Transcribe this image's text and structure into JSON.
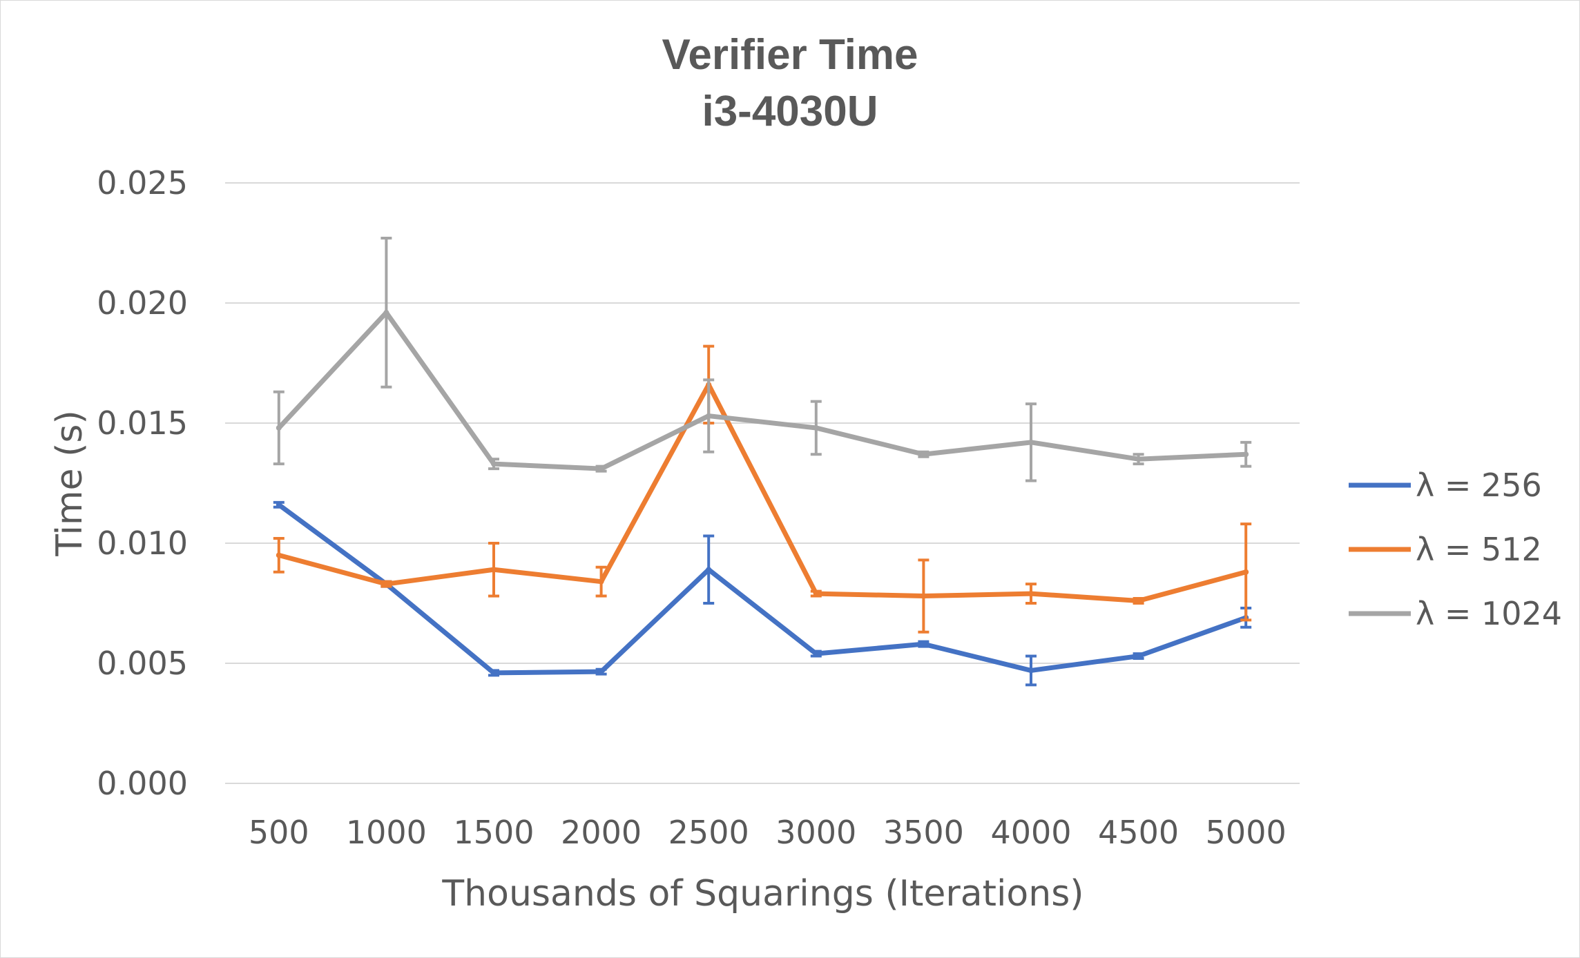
{
  "chart_data": {
    "type": "line",
    "title": "Verifier Time",
    "subtitle": "i3-4030U",
    "xlabel": "Thousands of Squarings (Iterations)",
    "ylabel": "Time (s)",
    "categories": [
      "500",
      "1000",
      "1500",
      "2000",
      "2500",
      "3000",
      "3500",
      "4000",
      "4500",
      "5000"
    ],
    "ylim": [
      0,
      0.025
    ],
    "yticks": [
      "0.000",
      "0.005",
      "0.010",
      "0.015",
      "0.020",
      "0.025"
    ],
    "grid": true,
    "legend_position": "right",
    "series": [
      {
        "name": "λ = 256",
        "color": "#4472c4",
        "values": [
          0.0116,
          0.0083,
          0.0046,
          0.00465,
          0.0089,
          0.0054,
          0.0058,
          0.0047,
          0.0053,
          0.0069
        ],
        "errors": [
          0.0001,
          0.0001,
          0.0001,
          0.0001,
          0.0014,
          0.0001,
          0.0001,
          0.0006,
          0.0001,
          0.0004
        ]
      },
      {
        "name": "λ = 512",
        "color": "#ed7d31",
        "values": [
          0.0095,
          0.0083,
          0.0089,
          0.0084,
          0.0166,
          0.0079,
          0.0078,
          0.0079,
          0.0076,
          0.0088
        ],
        "errors": [
          0.0007,
          0.0001,
          0.0011,
          0.0006,
          0.0016,
          0.0001,
          0.0015,
          0.0004,
          0.0001,
          0.002
        ]
      },
      {
        "name": "λ = 1024",
        "color": "#a5a5a5",
        "values": [
          0.0148,
          0.0196,
          0.0133,
          0.0131,
          0.0153,
          0.0148,
          0.0137,
          0.0142,
          0.0135,
          0.0137
        ],
        "errors": [
          0.0015,
          0.0031,
          0.0002,
          0.0001,
          0.0015,
          0.0011,
          0.0001,
          0.0016,
          0.0002,
          0.0005
        ]
      }
    ]
  }
}
